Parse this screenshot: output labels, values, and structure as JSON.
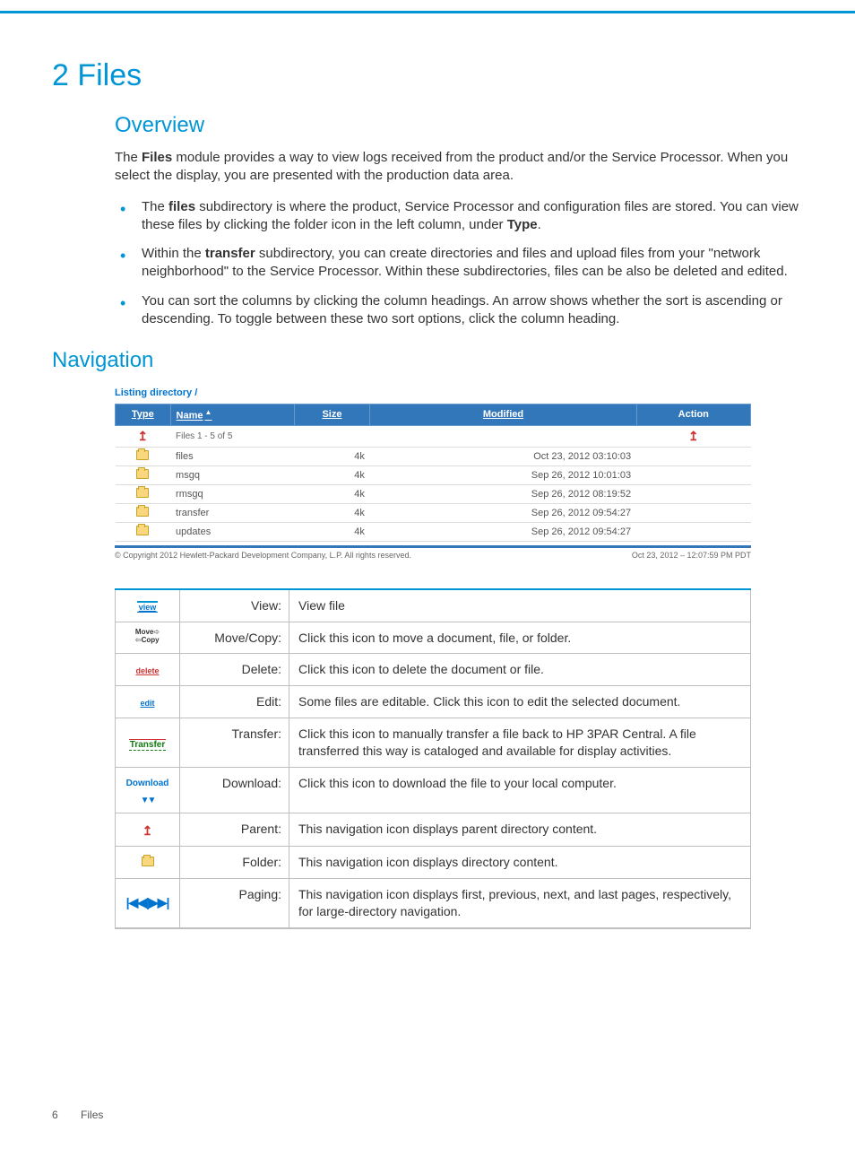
{
  "chapter_title": "2 Files",
  "overview": {
    "heading": "Overview",
    "intro_part1": "The ",
    "intro_bold1": "Files",
    "intro_part2": " module provides a way to view logs received from the product and/or the Service Processor. When you select the display, you are presented with the production data area.",
    "bullets": [
      {
        "pre": "The ",
        "b": "files",
        "post": " subdirectory is where the product, Service Processor and configuration files are stored. You can view these files by clicking the folder icon in the left column, under ",
        "b2": "Type",
        "post2": "."
      },
      {
        "pre": "Within the ",
        "b": "transfer",
        "post": " subdirectory, you can create directories and files and upload files from your \"network neighborhood\" to the Service Processor. Within these subdirectories, files can be also be deleted and edited."
      },
      {
        "pre": "",
        "b": "",
        "post": "You can sort the columns by clicking the column headings. An arrow shows whether the sort is ascending or descending. To toggle between these two sort options, click the column heading."
      }
    ]
  },
  "navigation_heading": "Navigation",
  "dir_listing": {
    "title": "Listing directory /",
    "columns": {
      "type": "Type",
      "name": "Name",
      "size": "Size",
      "modified": "Modified",
      "action": "Action"
    },
    "meta_row": "Files  1 - 5 of 5",
    "rows": [
      {
        "name": "files",
        "size": "4k",
        "modified": "Oct 23, 2012 03:10:03"
      },
      {
        "name": "msgq",
        "size": "4k",
        "modified": "Sep 26, 2012 10:01:03"
      },
      {
        "name": "rmsgq",
        "size": "4k",
        "modified": "Sep 26, 2012 08:19:52"
      },
      {
        "name": "transfer",
        "size": "4k",
        "modified": "Sep 26, 2012 09:54:27"
      },
      {
        "name": "updates",
        "size": "4k",
        "modified": "Sep 26, 2012 09:54:27"
      }
    ],
    "footer_left": "© Copyright 2012 Hewlett-Packard Development Company, L.P.   All rights reserved.",
    "footer_right": "Oct 23, 2012 – 12:07:59 PM PDT"
  },
  "legend": [
    {
      "icon": "view",
      "label": "View:",
      "desc": "View file"
    },
    {
      "icon": "movecopy",
      "label": "Move/Copy:",
      "desc": "Click this icon to move a document, file, or folder."
    },
    {
      "icon": "delete",
      "label": "Delete:",
      "desc": "Click this icon to delete the document or file."
    },
    {
      "icon": "edit",
      "label": "Edit:",
      "desc": "Some files are editable. Click this icon to edit the selected document."
    },
    {
      "icon": "transfer",
      "label": "Transfer:",
      "desc": "Click this icon to manually transfer a file back to HP 3PAR Central. A file transferred this way is cataloged and available for display activities."
    },
    {
      "icon": "download",
      "label": "Download:",
      "desc": "Click this icon to download the file to your local computer."
    },
    {
      "icon": "parent",
      "label": "Parent:",
      "desc": "This navigation icon displays parent directory content."
    },
    {
      "icon": "folder",
      "label": "Folder:",
      "desc": "This navigation icon displays directory content."
    },
    {
      "icon": "paging",
      "label": "Paging:",
      "desc": "This navigation icon displays first, previous, next, and last pages, respectively, for large-directory navigation."
    }
  ],
  "icon_text": {
    "view": "view",
    "move": "Move",
    "copy": "Copy",
    "delete": "delete",
    "edit": "edit",
    "transfer": "Transfer",
    "download": "Download",
    "paging": "|◀◀|▶▶|"
  },
  "page_footer": {
    "num": "6",
    "label": "Files"
  }
}
